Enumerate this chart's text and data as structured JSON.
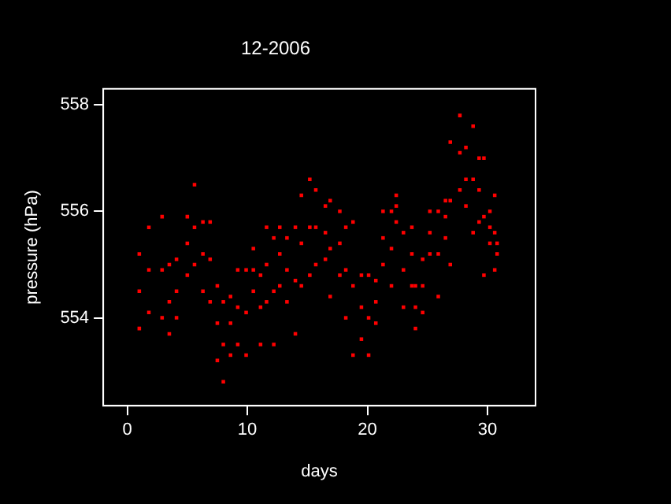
{
  "chart_data": {
    "type": "scatter",
    "title": "12-2006",
    "xlabel": "days",
    "ylabel": "pressure (hPa)",
    "xlim": [
      -2,
      34
    ],
    "xticks": [
      0,
      10,
      20,
      30
    ],
    "ylim": [
      552.35,
      558.3
    ],
    "yticks": [
      554,
      556,
      558
    ],
    "grid": false,
    "legend": false,
    "marker": "square",
    "series": [
      {
        "color": "#ff0000",
        "x": [
          1.0,
          1.0,
          1.0,
          1.8,
          1.8,
          1.8,
          2.9,
          2.9,
          2.9,
          3.5,
          3.5,
          3.5,
          4.1,
          4.1,
          4.1,
          5.0,
          5.0,
          5.0,
          5.6,
          5.6,
          5.6,
          6.3,
          6.3,
          6.3,
          6.9,
          6.9,
          6.9,
          7.5,
          7.5,
          7.5,
          8.0,
          8.0,
          8.0,
          8.6,
          8.6,
          8.6,
          9.2,
          9.2,
          9.2,
          9.9,
          9.9,
          9.9,
          10.5,
          10.5,
          10.5,
          11.1,
          11.1,
          11.1,
          11.6,
          11.6,
          11.6,
          12.2,
          12.2,
          12.2,
          12.7,
          12.7,
          12.7,
          13.3,
          13.3,
          13.3,
          14.0,
          14.0,
          14.0,
          14.5,
          14.5,
          14.5,
          15.2,
          15.2,
          15.2,
          15.7,
          15.7,
          15.7,
          16.5,
          16.5,
          16.5,
          16.9,
          16.9,
          16.9,
          17.7,
          17.7,
          17.7,
          18.2,
          18.2,
          18.2,
          18.8,
          18.8,
          18.8,
          19.5,
          19.5,
          19.5,
          20.1,
          20.1,
          20.1,
          20.7,
          20.7,
          20.7,
          21.3,
          21.3,
          21.3,
          22.0,
          22.0,
          22.0,
          22.4,
          22.4,
          22.4,
          23.0,
          23.0,
          23.0,
          23.7,
          23.7,
          23.7,
          24.0,
          24.0,
          24.0,
          24.6,
          24.6,
          24.6,
          25.2,
          25.2,
          25.2,
          25.9,
          25.9,
          25.9,
          26.5,
          26.5,
          26.5,
          26.9,
          26.9,
          26.9,
          27.7,
          27.7,
          27.7,
          28.2,
          28.2,
          28.2,
          28.8,
          28.8,
          28.8,
          29.3,
          29.3,
          29.3,
          29.7,
          29.7,
          29.7,
          30.2,
          30.2,
          30.2,
          30.6,
          30.6,
          30.6,
          30.8,
          30.8
        ],
        "values": [
          555.2,
          554.5,
          553.8,
          555.7,
          554.9,
          554.1,
          555.9,
          554.9,
          554.0,
          555.0,
          554.3,
          553.7,
          555.1,
          554.5,
          554.0,
          555.9,
          555.4,
          554.8,
          556.5,
          555.7,
          555.0,
          555.8,
          555.2,
          554.5,
          555.8,
          555.1,
          554.3,
          554.6,
          553.9,
          553.2,
          554.3,
          553.5,
          552.8,
          554.4,
          553.9,
          553.3,
          554.9,
          554.2,
          553.5,
          554.9,
          554.1,
          553.3,
          555.3,
          554.9,
          554.5,
          554.8,
          554.2,
          553.5,
          555.7,
          555.0,
          554.3,
          555.5,
          554.5,
          553.5,
          555.7,
          555.2,
          554.6,
          555.5,
          554.9,
          554.3,
          555.7,
          554.7,
          553.7,
          556.3,
          555.4,
          554.6,
          556.6,
          555.7,
          554.8,
          556.4,
          555.7,
          555.0,
          556.1,
          555.6,
          555.1,
          556.2,
          555.3,
          554.4,
          556.0,
          555.4,
          554.8,
          555.7,
          554.9,
          554.0,
          555.8,
          554.6,
          553.3,
          554.8,
          554.2,
          553.6,
          554.8,
          554.0,
          553.3,
          554.7,
          554.3,
          553.9,
          556.0,
          555.5,
          555.0,
          556.0,
          555.3,
          554.6,
          556.3,
          556.1,
          555.8,
          555.6,
          554.9,
          554.2,
          555.7,
          555.2,
          554.6,
          554.6,
          554.2,
          553.8,
          555.1,
          554.6,
          554.1,
          556.0,
          555.6,
          555.2,
          556.0,
          555.2,
          554.4,
          556.2,
          555.9,
          555.5,
          557.3,
          556.2,
          555.0,
          557.8,
          557.1,
          556.4,
          557.2,
          556.6,
          556.1,
          557.6,
          556.6,
          555.6,
          557.0,
          556.4,
          555.8,
          557.0,
          555.9,
          554.8,
          556.0,
          555.7,
          555.4,
          556.3,
          555.6,
          554.9,
          555.4,
          555.2
        ]
      }
    ]
  }
}
